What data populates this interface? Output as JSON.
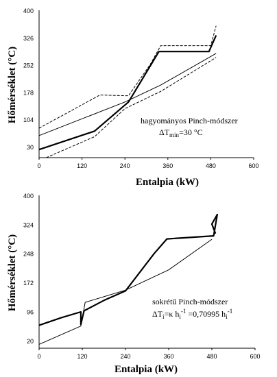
{
  "chart_data": [
    {
      "type": "line",
      "xlabel": "Entalpia (kW)",
      "ylabel": "Hőmérséklet  (°C)",
      "xlim": [
        0,
        600
      ],
      "ylim": [
        0,
        400
      ],
      "xticks": [
        0,
        120,
        240,
        360,
        480,
        600
      ],
      "yticks": [
        30,
        104,
        178,
        252,
        326,
        400
      ],
      "annotation": {
        "line1": "hagyományos Pinch-módszer",
        "line2_prefix": "ΔT",
        "line2_sub": "min",
        "line2_suffix": "=30 °C"
      },
      "series": [
        {
          "style": "thick",
          "x": [
            0,
            155,
            250,
            335,
            475,
            495
          ],
          "y": [
            22,
            72,
            151,
            288,
            288,
            332
          ]
        },
        {
          "style": "thin",
          "x": [
            0,
            240,
            340,
            495
          ],
          "y": [
            60,
            151,
            197,
            283
          ]
        },
        {
          "style": "dashed",
          "x": [
            0,
            170,
            250,
            310,
            340,
            480,
            495
          ],
          "y": [
            80,
            170,
            168,
            252,
            304,
            304,
            358
          ]
        },
        {
          "style": "dashed",
          "x": [
            20,
            155,
            240,
            340,
            495
          ],
          "y": [
            0,
            57,
            133,
            180,
            272
          ]
        }
      ]
    },
    {
      "type": "line",
      "xlabel": "Entalpia (kW)",
      "ylabel": "Hőmérséklet  (°C)",
      "xlim": [
        0,
        600
      ],
      "ylim": [
        0,
        400
      ],
      "xticks": [
        0,
        120,
        240,
        360,
        480,
        600
      ],
      "yticks": [
        20,
        96,
        172,
        248,
        324,
        400
      ],
      "annotation": {
        "line1": "sokrétű Pinch-módszer",
        "line2_prefix": "ΔT",
        "line2_sub": "i",
        "line2_mid": "=κ h",
        "line2_sub2": "i",
        "line2_sup2": "-1",
        "line2_mid2": " =0,70995 h",
        "line2_sub3": "i",
        "line2_sup3": "-1"
      },
      "series": [
        {
          "style": "thick",
          "x": [
            0,
            62,
            116,
            116,
            125,
            180,
            240,
            320,
            355,
            485,
            495,
            480,
            490
          ],
          "y": [
            60,
            80,
            95,
            62,
            98,
            125,
            150,
            248,
            286,
            294,
            350,
            325,
            300
          ]
        },
        {
          "style": "thin",
          "x": [
            0,
            116,
            128,
            240,
            360,
            480
          ],
          "y": [
            10,
            58,
            120,
            152,
            205,
            285
          ]
        }
      ]
    }
  ]
}
